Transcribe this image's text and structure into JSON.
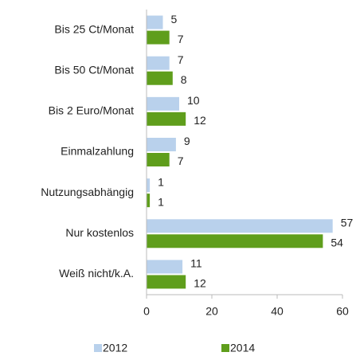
{
  "chart_data": {
    "type": "barh",
    "categories": [
      "Bis 25 Ct/Monat",
      "Bis 50 Ct/Monat",
      "Bis 2 Euro/Monat",
      "Einmalzahlung",
      "Nutzungsabhängig",
      "Nur kostenlos",
      "Weiß nicht/k.A."
    ],
    "series": [
      {
        "name": "2012",
        "color": "#b9d1ec",
        "values": [
          5,
          7,
          10,
          9,
          1,
          57,
          11
        ]
      },
      {
        "name": "2014",
        "color": "#5f9e1c",
        "values": [
          7,
          8,
          12,
          7,
          1,
          54,
          12
        ]
      }
    ],
    "xlim": [
      0,
      60
    ],
    "xticks": [
      0,
      20,
      40,
      60
    ],
    "grid": false,
    "legend": "bottom"
  }
}
